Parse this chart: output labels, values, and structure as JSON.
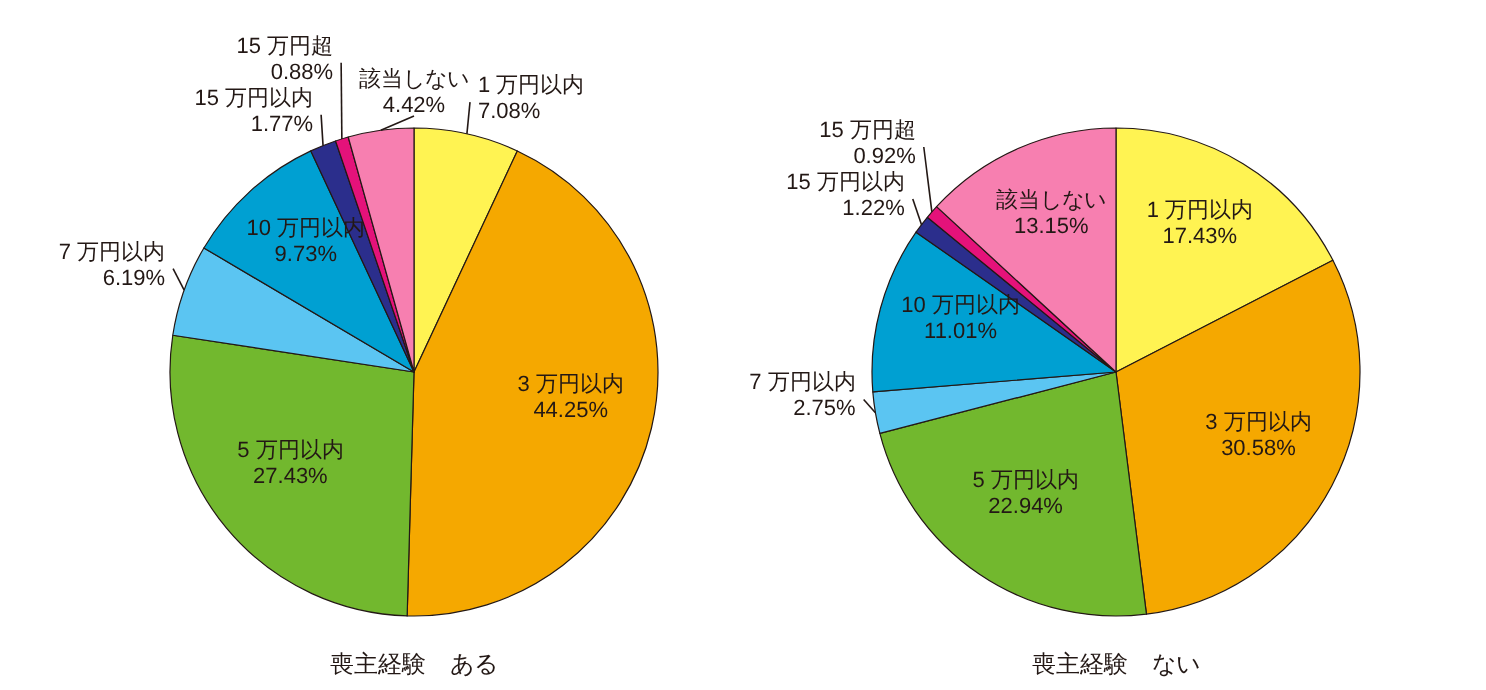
{
  "chart_data": [
    {
      "type": "pie",
      "title": "喪主経験　ある",
      "value_labels": [
        "7.08%",
        "44.25%",
        "27.43%",
        "6.19%",
        "9.73%",
        "1.77%",
        "0.88%",
        "4.42%"
      ],
      "categories": [
        "1 万円以内",
        "3 万円以内",
        "5 万円以内",
        "7 万円以内",
        "10 万円以内",
        "15 万円以内",
        "15 万円超",
        "該当しない"
      ],
      "values": [
        7.08,
        44.25,
        27.43,
        6.19,
        9.73,
        1.77,
        0.88,
        4.42
      ],
      "colors": [
        "#fff352",
        "#f5a800",
        "#72b82e",
        "#5bc5f2",
        "#00a0d2",
        "#2b2e8c",
        "#e4127a",
        "#f77fb0"
      ]
    },
    {
      "type": "pie",
      "title": "喪主経験　ない",
      "value_labels": [
        "17.43%",
        "30.58%",
        "22.94%",
        "2.75%",
        "11.01%",
        "1.22%",
        "0.92%",
        "13.15%"
      ],
      "categories": [
        "1 万円以内",
        "3 万円以内",
        "5 万円以内",
        "7 万円以内",
        "10 万円以内",
        "15 万円以内",
        "15 万円超",
        "該当しない"
      ],
      "values": [
        17.43,
        30.58,
        22.94,
        2.75,
        11.01,
        1.22,
        0.92,
        13.15
      ],
      "colors": [
        "#fff352",
        "#f5a800",
        "#72b82e",
        "#5bc5f2",
        "#00a0d2",
        "#2b2e8c",
        "#e4127a",
        "#f77fb0"
      ]
    }
  ]
}
